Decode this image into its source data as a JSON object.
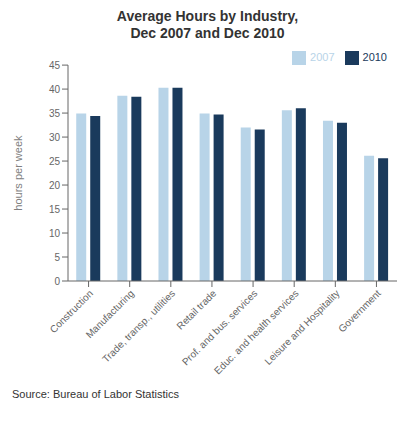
{
  "chart_data": {
    "type": "bar",
    "title": "Average Hours by Industry,\nDec 2007 and Dec 2010",
    "categories": [
      "Construction",
      "Manufacturing",
      "Trade, transp., utilities",
      "Retail trade",
      "Prof. and bus. services",
      "Educ. and health services",
      "Leisure and Hospitality",
      "Government"
    ],
    "series": [
      {
        "name": "2007",
        "color": "#b8d4e8",
        "values": [
          34.9,
          38.6,
          40.3,
          34.9,
          32.0,
          35.6,
          33.4,
          26.1
        ]
      },
      {
        "name": "2010",
        "color": "#1a3a5c",
        "values": [
          34.4,
          38.4,
          40.3,
          34.7,
          31.6,
          36.0,
          33.0,
          25.6
        ]
      }
    ],
    "ylabel": "hours per week",
    "ylim": [
      0,
      45
    ],
    "yticks": [
      0,
      5,
      10,
      15,
      20,
      25,
      30,
      35,
      40,
      45
    ],
    "legend": "upper right",
    "grid": false,
    "annotations": [
      "Source: Bureau of Labor Statistics"
    ]
  }
}
